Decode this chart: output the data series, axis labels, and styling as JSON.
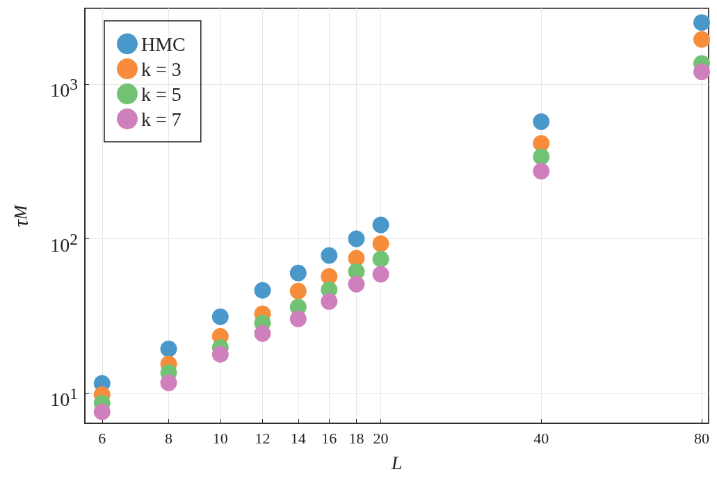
{
  "chart_data": {
    "type": "scatter",
    "xlabel": "L",
    "ylabel": "τ$_{M}$",
    "log": "xy",
    "grid": true,
    "legend": "top left",
    "marker": "circle",
    "x": [
      6,
      8,
      10,
      12,
      14,
      16,
      18,
      20,
      40,
      80
    ],
    "xlim": [
      5.57,
      82.4
    ],
    "xticks": [
      6,
      8,
      10,
      12,
      14,
      16,
      18,
      20,
      40,
      80
    ],
    "ylim": [
      6.4,
      3100
    ],
    "yticks": [
      {
        "value": 10,
        "label": "10$^{1}$"
      },
      {
        "value": 100,
        "label": "10$^{2}$"
      },
      {
        "value": 1000,
        "label": "10$^{3}$"
      }
    ],
    "series": [
      {
        "name": "HMC",
        "color": "#4a97c9",
        "values": [
          11.6,
          19.4,
          31.3,
          46.4,
          60.1,
          78,
          100,
          123,
          573,
          2510
        ]
      },
      {
        "name": "k = 3",
        "color": "#f78d3a",
        "values": [
          9.8,
          15.5,
          23.4,
          32.7,
          45.9,
          57.1,
          74.8,
          93,
          415,
          1950
        ]
      },
      {
        "name": "k = 5",
        "color": "#71c373",
        "values": [
          8.65,
          13.6,
          19.8,
          28.5,
          36.2,
          46.9,
          61.4,
          74,
          340,
          1365
        ]
      },
      {
        "name": "k = 7",
        "color": "#d07fbd",
        "values": [
          7.6,
          11.7,
          17.9,
          24.4,
          30.3,
          39.3,
          50.9,
          59,
          274,
          1205
        ]
      }
    ]
  }
}
